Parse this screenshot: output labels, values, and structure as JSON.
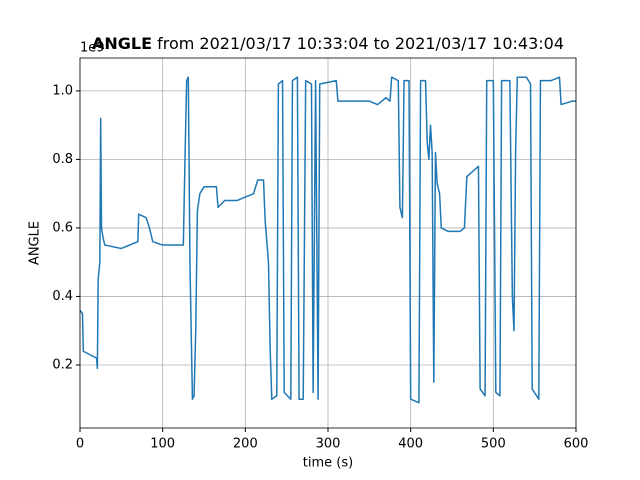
{
  "chart_data": {
    "type": "line",
    "title_bold": "ANGLE",
    "title": "from 2021/03/17 10:33:04 to 2021/03/17 10:43:04",
    "x_label": "time (s)",
    "y_label": "ANGLE",
    "y_offset_label": "1e9",
    "color": "#1f77b4",
    "grid": true,
    "xlim": [
      0,
      600
    ],
    "xticks": [
      0,
      100,
      200,
      300,
      400,
      500,
      600
    ],
    "ylim": [
      0.016,
      1.096
    ],
    "yticks": [
      0.2,
      0.4,
      0.6,
      0.8,
      {
        "value": 1,
        "label": "1.0"
      }
    ],
    "x": [
      0,
      3,
      4,
      20,
      21,
      22,
      24,
      25,
      26,
      28,
      30,
      50,
      60,
      70,
      71,
      80,
      84,
      88,
      100,
      110,
      125,
      127,
      129,
      131,
      133,
      136,
      138,
      140,
      142,
      145,
      150,
      165,
      167,
      175,
      190,
      200,
      210,
      215,
      222,
      224,
      228,
      230,
      232,
      238,
      240,
      245,
      247,
      255,
      257,
      263,
      265,
      270,
      273,
      280,
      282,
      285,
      288,
      290,
      310,
      312,
      330,
      350,
      360,
      370,
      375,
      377,
      385,
      387,
      390,
      392,
      398,
      400,
      410,
      412,
      418,
      420,
      422,
      424,
      426,
      428,
      430,
      432,
      435,
      437,
      445,
      460,
      465,
      468,
      482,
      484,
      490,
      492,
      500,
      503,
      508,
      510,
      520,
      523,
      525,
      527,
      529,
      540,
      545,
      547,
      555,
      557,
      570,
      580,
      582,
      595,
      600
    ],
    "values": [
      0.36,
      0.35,
      0.24,
      0.22,
      0.19,
      0.45,
      0.5,
      0.92,
      0.6,
      0.57,
      0.55,
      0.54,
      0.55,
      0.56,
      0.64,
      0.63,
      0.6,
      0.56,
      0.55,
      0.55,
      0.55,
      0.8,
      1.03,
      1.04,
      0.5,
      0.1,
      0.11,
      0.3,
      0.65,
      0.7,
      0.72,
      0.72,
      0.66,
      0.68,
      0.68,
      0.69,
      0.7,
      0.74,
      0.74,
      0.62,
      0.5,
      0.25,
      0.1,
      0.11,
      1.02,
      1.03,
      0.12,
      0.1,
      1.03,
      1.04,
      0.1,
      0.1,
      1.03,
      1.02,
      0.12,
      1.03,
      0.1,
      1.02,
      1.03,
      0.97,
      0.97,
      0.97,
      0.96,
      0.98,
      0.97,
      1.04,
      1.03,
      0.66,
      0.63,
      1.03,
      1.03,
      0.1,
      0.09,
      1.03,
      1.03,
      0.85,
      0.8,
      0.9,
      0.82,
      0.15,
      0.82,
      0.73,
      0.7,
      0.6,
      0.59,
      0.59,
      0.6,
      0.75,
      0.78,
      0.13,
      0.11,
      1.03,
      1.03,
      0.12,
      0.11,
      1.03,
      1.03,
      0.4,
      0.3,
      0.83,
      1.04,
      1.04,
      1.02,
      0.13,
      0.1,
      1.03,
      1.03,
      1.04,
      0.96,
      0.97,
      0.97
    ]
  }
}
